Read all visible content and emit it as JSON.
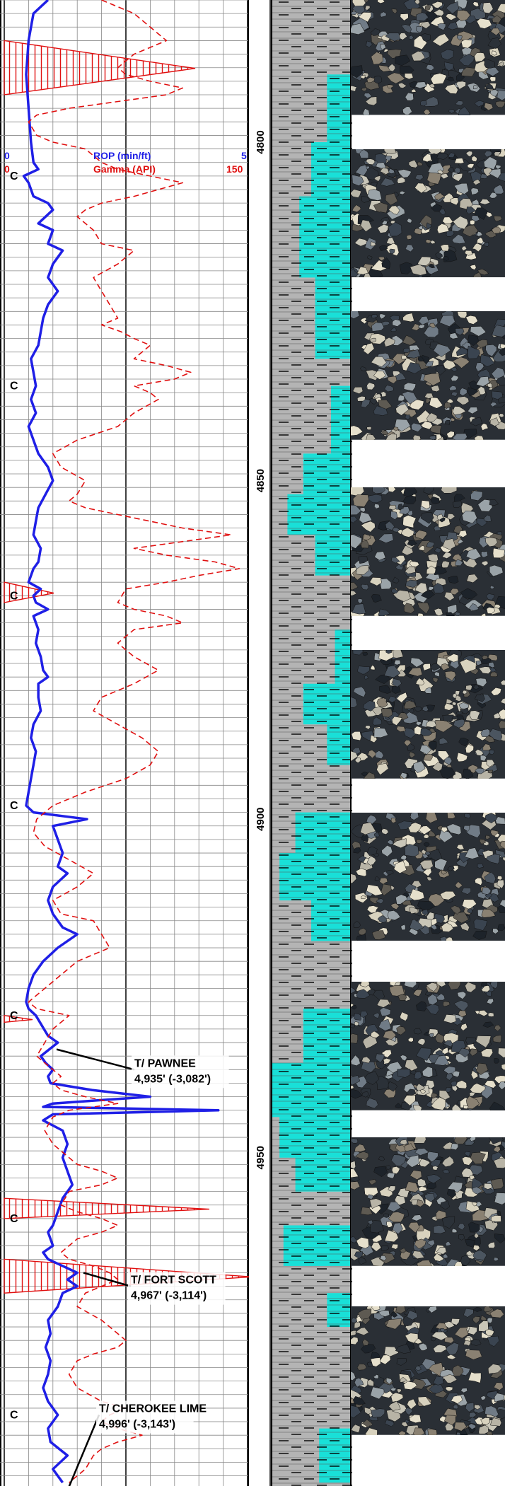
{
  "scale": {
    "rop_label": "ROP (min/ft)",
    "rop_min": "0",
    "rop_max": "5",
    "gamma_label": "Gamma (API)",
    "gamma_min": "0",
    "gamma_max": "150"
  },
  "depth_marks": [
    {
      "label": "4800",
      "depth": 4800
    },
    {
      "label": "4850",
      "depth": 4850
    },
    {
      "label": "4900",
      "depth": 4900
    },
    {
      "label": "4950",
      "depth": 4950
    }
  ],
  "depth_range": [
    4779,
    4998
  ],
  "connection_marker": "C",
  "connection_depths": [
    4805,
    4836,
    4867,
    4898,
    4929,
    4959,
    4988
  ],
  "formation_tops": [
    {
      "name": "T/ PAWNEE",
      "depth_text": "4,935' (-3,082')",
      "depth": 4935
    },
    {
      "name": "T/ FORT SCOTT",
      "depth_text": "4,967' (-3,114')",
      "depth": 4967
    },
    {
      "name": "T/ CHEROKEE LIME",
      "depth_text": "4,996' (-3,143')",
      "depth": 4996
    }
  ],
  "colors": {
    "rop": "#1f1fe6",
    "gamma": "#e01010",
    "grid": "#888888",
    "shale": "#b4b4b4",
    "limestone": "#19e0d8",
    "outline": "#000000"
  },
  "cuttings_samples": [
    {
      "name": "sample-1",
      "top": 4779,
      "bottom": 4796
    },
    {
      "name": "sample-2",
      "top": 4801,
      "bottom": 4820
    },
    {
      "name": "sample-3",
      "top": 4825,
      "bottom": 4844
    },
    {
      "name": "sample-4",
      "top": 4851,
      "bottom": 4870
    },
    {
      "name": "sample-5",
      "top": 4875,
      "bottom": 4894
    },
    {
      "name": "sample-6",
      "top": 4899,
      "bottom": 4918
    },
    {
      "name": "sample-7",
      "top": 4924,
      "bottom": 4943
    },
    {
      "name": "sample-8",
      "top": 4947,
      "bottom": 4966
    },
    {
      "name": "sample-9",
      "top": 4972,
      "bottom": 4991
    }
  ],
  "chart_data": {
    "type": "line",
    "ylabel": "",
    "xlabel": "",
    "series": [
      {
        "name": "ROP (min/ft)",
        "xlim": [
          0,
          5
        ],
        "points": [
          [
            0.9,
            4779
          ],
          [
            0.6,
            4781
          ],
          [
            0.5,
            4785
          ],
          [
            0.45,
            4790
          ],
          [
            0.5,
            4795
          ],
          [
            0.55,
            4800
          ],
          [
            0.6,
            4803
          ],
          [
            0.7,
            4804
          ],
          [
            0.4,
            4805
          ],
          [
            0.5,
            4806
          ],
          [
            0.6,
            4808
          ],
          [
            0.9,
            4809
          ],
          [
            1.0,
            4810
          ],
          [
            0.7,
            4812
          ],
          [
            1.0,
            4813
          ],
          [
            0.9,
            4815
          ],
          [
            1.2,
            4816
          ],
          [
            1.0,
            4818
          ],
          [
            0.9,
            4820
          ],
          [
            1.1,
            4822
          ],
          [
            0.9,
            4824
          ],
          [
            0.8,
            4826
          ],
          [
            0.75,
            4828
          ],
          [
            0.7,
            4830
          ],
          [
            0.55,
            4832
          ],
          [
            0.6,
            4834
          ],
          [
            0.65,
            4836
          ],
          [
            0.55,
            4838
          ],
          [
            0.65,
            4840
          ],
          [
            0.5,
            4842
          ],
          [
            0.6,
            4844
          ],
          [
            0.7,
            4846
          ],
          [
            0.9,
            4848
          ],
          [
            1.0,
            4850
          ],
          [
            0.85,
            4852
          ],
          [
            0.7,
            4854
          ],
          [
            0.65,
            4856
          ],
          [
            0.6,
            4858
          ],
          [
            0.75,
            4860
          ],
          [
            0.7,
            4862
          ],
          [
            0.6,
            4863
          ],
          [
            0.5,
            4865
          ],
          [
            0.75,
            4866
          ],
          [
            0.6,
            4867
          ],
          [
            0.65,
            4868
          ],
          [
            0.9,
            4869
          ],
          [
            0.6,
            4870
          ],
          [
            0.7,
            4872
          ],
          [
            0.65,
            4874
          ],
          [
            0.75,
            4876
          ],
          [
            0.8,
            4878
          ],
          [
            0.9,
            4879
          ],
          [
            0.7,
            4880
          ],
          [
            0.7,
            4882
          ],
          [
            0.75,
            4884
          ],
          [
            0.6,
            4886
          ],
          [
            0.55,
            4888
          ],
          [
            0.65,
            4890
          ],
          [
            0.6,
            4892
          ],
          [
            0.55,
            4894
          ],
          [
            0.5,
            4896
          ],
          [
            0.45,
            4898
          ],
          [
            0.6,
            4899
          ],
          [
            1.7,
            4900
          ],
          [
            1.0,
            4901
          ],
          [
            1.1,
            4903
          ],
          [
            1.2,
            4905
          ],
          [
            1.1,
            4907
          ],
          [
            1.3,
            4908
          ],
          [
            1.0,
            4910
          ],
          [
            0.9,
            4912
          ],
          [
            1.0,
            4914
          ],
          [
            1.2,
            4916
          ],
          [
            1.5,
            4917
          ],
          [
            1.1,
            4919
          ],
          [
            0.8,
            4921
          ],
          [
            0.6,
            4923
          ],
          [
            0.5,
            4925
          ],
          [
            0.45,
            4927
          ],
          [
            0.5,
            4928
          ],
          [
            0.65,
            4929
          ],
          [
            0.9,
            4932
          ],
          [
            1.1,
            4933
          ],
          [
            0.75,
            4935
          ],
          [
            0.85,
            4936
          ],
          [
            1.0,
            4937
          ],
          [
            0.9,
            4938
          ],
          [
            0.95,
            4939
          ],
          [
            1.8,
            4940
          ],
          [
            3.0,
            4941
          ],
          [
            1.0,
            4942
          ],
          [
            0.8,
            4942.5
          ],
          [
            4.4,
            4943
          ],
          [
            1.0,
            4943.6
          ],
          [
            0.8,
            4944.5
          ],
          [
            1.2,
            4946
          ],
          [
            1.3,
            4948
          ],
          [
            1.2,
            4950
          ],
          [
            1.3,
            4952
          ],
          [
            1.4,
            4954
          ],
          [
            1.2,
            4956
          ],
          [
            1.1,
            4958
          ],
          [
            1.0,
            4960
          ],
          [
            0.9,
            4961
          ],
          [
            1.0,
            4963
          ],
          [
            0.8,
            4964
          ],
          [
            0.9,
            4965
          ],
          [
            1.2,
            4966
          ],
          [
            1.5,
            4967
          ],
          [
            1.3,
            4968
          ],
          [
            1.5,
            4969
          ],
          [
            1.2,
            4970
          ],
          [
            1.1,
            4972
          ],
          [
            0.9,
            4974
          ],
          [
            0.95,
            4976
          ],
          [
            0.85,
            4978
          ],
          [
            0.95,
            4980
          ],
          [
            0.9,
            4982
          ],
          [
            0.8,
            4984
          ],
          [
            0.9,
            4986
          ],
          [
            1.1,
            4988
          ],
          [
            0.9,
            4990
          ],
          [
            0.95,
            4992
          ],
          [
            1.3,
            4994
          ],
          [
            1.0,
            4996
          ],
          [
            1.2,
            4998
          ]
        ]
      },
      {
        "name": "Gamma (API)",
        "xlim": [
          0,
          150
        ],
        "points": [
          [
            60,
            4779
          ],
          [
            70,
            4780
          ],
          [
            80,
            4781
          ],
          [
            90,
            4783
          ],
          [
            100,
            4785
          ],
          [
            80,
            4787
          ],
          [
            70,
            4789
          ],
          [
            75,
            4790
          ],
          [
            90,
            4791
          ],
          [
            110,
            4792
          ],
          [
            100,
            4793
          ],
          [
            40,
            4795
          ],
          [
            20,
            4796
          ],
          [
            15,
            4797
          ],
          [
            20,
            4799
          ],
          [
            30,
            4800
          ],
          [
            50,
            4801
          ],
          [
            60,
            4803
          ],
          [
            70,
            4804
          ],
          [
            90,
            4805
          ],
          [
            110,
            4806
          ],
          [
            95,
            4807
          ],
          [
            80,
            4808
          ],
          [
            60,
            4809
          ],
          [
            50,
            4810
          ],
          [
            45,
            4811
          ],
          [
            55,
            4813
          ],
          [
            60,
            4815
          ],
          [
            80,
            4816
          ],
          [
            70,
            4818
          ],
          [
            55,
            4820
          ],
          [
            60,
            4822
          ],
          [
            65,
            4824
          ],
          [
            70,
            4826
          ],
          [
            60,
            4827
          ],
          [
            72,
            4828
          ],
          [
            80,
            4829
          ],
          [
            90,
            4830
          ],
          [
            85,
            4831
          ],
          [
            80,
            4832
          ],
          [
            100,
            4833
          ],
          [
            115,
            4834
          ],
          [
            105,
            4835
          ],
          [
            80,
            4836
          ],
          [
            90,
            4837
          ],
          [
            95,
            4838
          ],
          [
            80,
            4840
          ],
          [
            70,
            4842
          ],
          [
            45,
            4844
          ],
          [
            30,
            4846
          ],
          [
            35,
            4848
          ],
          [
            50,
            4850
          ],
          [
            45,
            4852
          ],
          [
            40,
            4853
          ],
          [
            50,
            4854
          ],
          [
            70,
            4855
          ],
          [
            90,
            4856
          ],
          [
            110,
            4857
          ],
          [
            140,
            4858
          ],
          [
            110,
            4859
          ],
          [
            80,
            4860
          ],
          [
            100,
            4861
          ],
          [
            130,
            4862
          ],
          [
            145,
            4863
          ],
          [
            120,
            4864
          ],
          [
            100,
            4865
          ],
          [
            75,
            4866
          ],
          [
            70,
            4868
          ],
          [
            80,
            4869
          ],
          [
            100,
            4870
          ],
          [
            110,
            4871
          ],
          [
            80,
            4872
          ],
          [
            70,
            4874
          ],
          [
            80,
            4876
          ],
          [
            95,
            4878
          ],
          [
            80,
            4880
          ],
          [
            60,
            4882
          ],
          [
            55,
            4884
          ],
          [
            70,
            4886
          ],
          [
            85,
            4888
          ],
          [
            95,
            4890
          ],
          [
            90,
            4892
          ],
          [
            75,
            4894
          ],
          [
            50,
            4896
          ],
          [
            30,
            4898
          ],
          [
            20,
            4900
          ],
          [
            18,
            4902
          ],
          [
            25,
            4904
          ],
          [
            40,
            4906
          ],
          [
            55,
            4908
          ],
          [
            45,
            4910
          ],
          [
            30,
            4912
          ],
          [
            35,
            4914
          ],
          [
            55,
            4915
          ],
          [
            60,
            4917
          ],
          [
            65,
            4919
          ],
          [
            55,
            4920
          ],
          [
            45,
            4921
          ],
          [
            40,
            4922
          ],
          [
            35,
            4923
          ],
          [
            30,
            4924
          ],
          [
            25,
            4925
          ],
          [
            20,
            4926
          ],
          [
            15,
            4927
          ],
          [
            20,
            4928
          ],
          [
            40,
            4929
          ],
          [
            30,
            4931
          ],
          [
            25,
            4933
          ],
          [
            20,
            4935
          ],
          [
            25,
            4936
          ],
          [
            30,
            4937
          ],
          [
            35,
            4938
          ],
          [
            30,
            4939
          ],
          [
            35,
            4940
          ],
          [
            50,
            4941
          ],
          [
            70,
            4942
          ],
          [
            40,
            4943
          ],
          [
            30,
            4944
          ],
          [
            25,
            4946
          ],
          [
            30,
            4948
          ],
          [
            35,
            4949
          ],
          [
            40,
            4950
          ],
          [
            45,
            4951
          ],
          [
            60,
            4952
          ],
          [
            70,
            4953
          ],
          [
            60,
            4954
          ],
          [
            40,
            4955
          ],
          [
            35,
            4957
          ],
          [
            45,
            4958
          ],
          [
            60,
            4959
          ],
          [
            70,
            4960
          ],
          [
            60,
            4961
          ],
          [
            45,
            4962
          ],
          [
            40,
            4963
          ],
          [
            35,
            4964
          ],
          [
            40,
            4965
          ],
          [
            55,
            4966
          ],
          [
            65,
            4967
          ],
          [
            70,
            4968
          ],
          [
            50,
            4970
          ],
          [
            45,
            4972
          ],
          [
            60,
            4974
          ],
          [
            70,
            4976
          ],
          [
            75,
            4977
          ],
          [
            70,
            4978
          ],
          [
            55,
            4979
          ],
          [
            45,
            4980
          ],
          [
            40,
            4982
          ],
          [
            45,
            4984
          ],
          [
            60,
            4986
          ],
          [
            75,
            4987
          ],
          [
            65,
            4988
          ],
          [
            60,
            4989
          ],
          [
            70,
            4990
          ],
          [
            85,
            4991
          ],
          [
            70,
            4992
          ],
          [
            60,
            4993
          ],
          [
            55,
            4994
          ],
          [
            50,
            4996
          ],
          [
            45,
            4997
          ],
          [
            40,
            4998
          ]
        ]
      }
    ]
  }
}
